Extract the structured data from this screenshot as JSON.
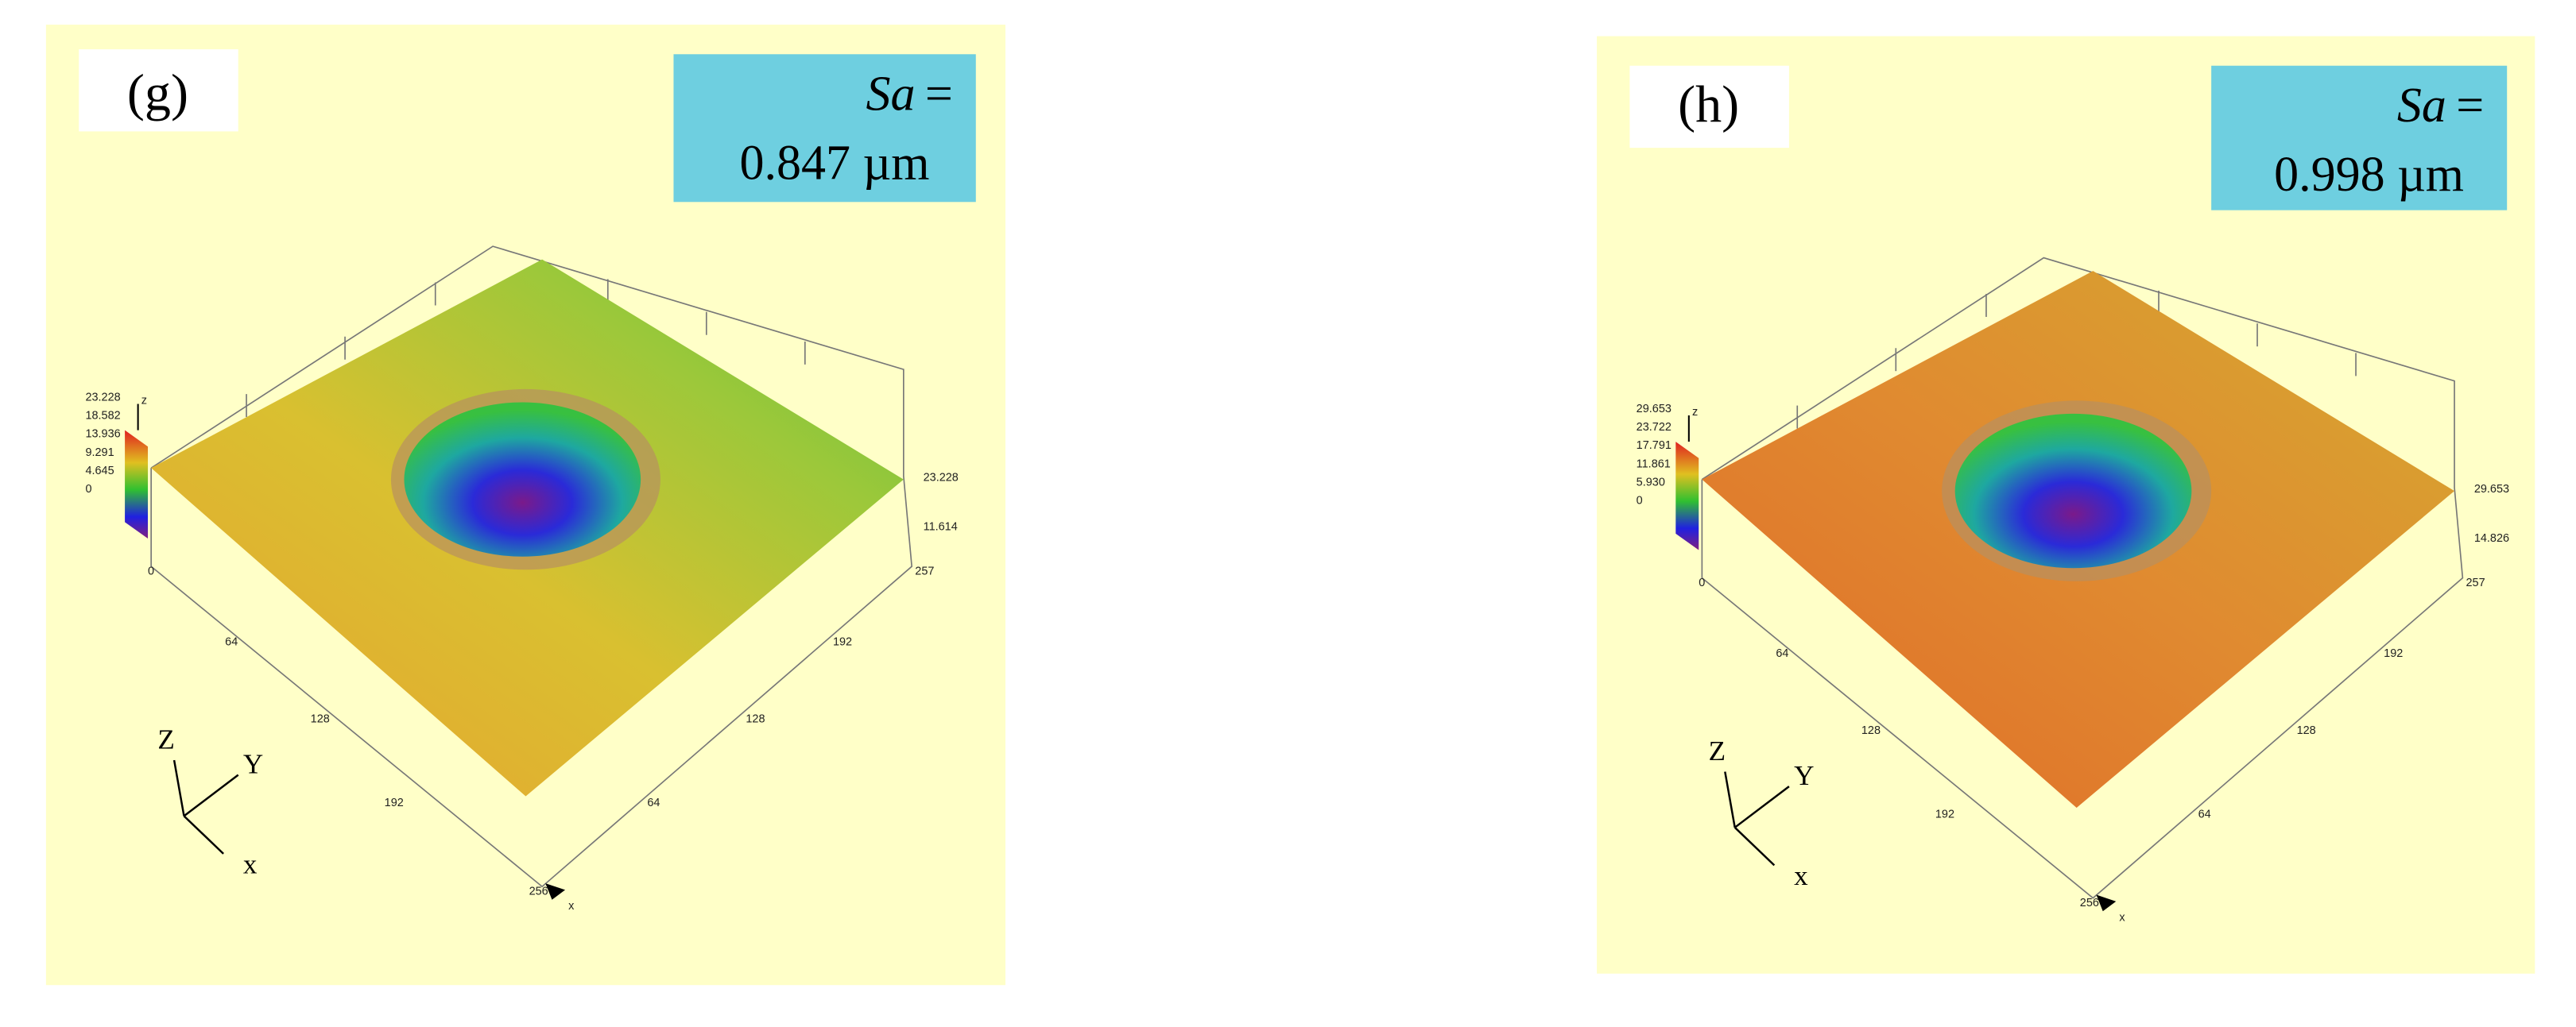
{
  "panels": [
    {
      "label": "(g)",
      "sa_name": "Sa",
      "sa_eq": "=",
      "sa_value": "0.847 µm",
      "colorbar": [
        "23.228",
        "18.582",
        "13.936",
        "9.291",
        "4.645",
        "0"
      ],
      "colorbar_axis": "z",
      "z_ticks": [
        "23.228",
        "11.614"
      ],
      "x_ticks": [
        "0",
        "64",
        "128",
        "192",
        "256"
      ],
      "y_ticks": [
        "257",
        "192",
        "128",
        "64"
      ],
      "x_axis": "x",
      "triad": [
        "Z",
        "Y",
        "x"
      ]
    },
    {
      "label": "(h)",
      "sa_name": "Sa",
      "sa_eq": "=",
      "sa_value": "0.998 µm",
      "colorbar": [
        "29.653",
        "23.722",
        "17.791",
        "11.861",
        "5.930",
        "0"
      ],
      "colorbar_axis": "z",
      "z_ticks": [
        "29.653",
        "14.826"
      ],
      "x_ticks": [
        "0",
        "64",
        "128",
        "192",
        "256"
      ],
      "y_ticks": [
        "257",
        "192",
        "128",
        "64"
      ],
      "x_axis": "x",
      "triad": [
        "Z",
        "Y",
        "x"
      ]
    }
  ]
}
